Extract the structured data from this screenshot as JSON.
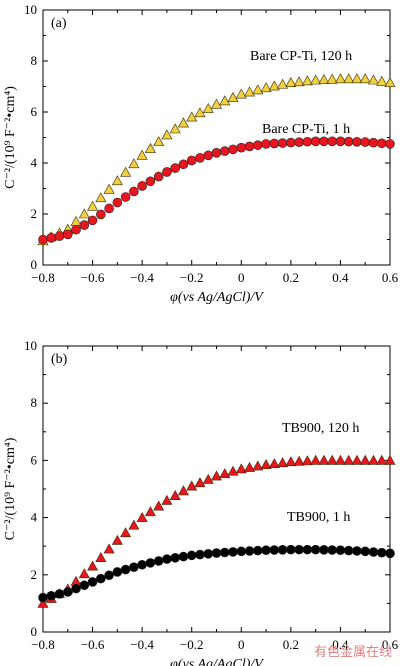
{
  "watermark": "有色金属在线",
  "chart_data": [
    {
      "type": "scatter",
      "panel_tag": "(a)",
      "xlabel": "φ(vs Ag/AgCl)/V",
      "ylabel": "C⁻²/(10⁹ F⁻²•cm⁴)",
      "xlim": [
        -0.8,
        0.6
      ],
      "ylim": [
        0,
        10
      ],
      "xticks": [
        -0.8,
        -0.6,
        -0.4,
        -0.2,
        0,
        0.2,
        0.4,
        0.6
      ],
      "xtick_labels": [
        "−0.8",
        "−0.6",
        "−0.4",
        "−0.2",
        "0",
        "0.2",
        "0.4",
        "0.6"
      ],
      "yticks": [
        0,
        2,
        4,
        6,
        8,
        10
      ],
      "ytick_labels": [
        "0",
        "2",
        "4",
        "6",
        "8",
        "10"
      ],
      "series": [
        {
          "name": "Bare CP-Ti, 120 h",
          "marker": "triangle",
          "color": "#f0d040",
          "x": [
            -0.8,
            -0.7,
            -0.6,
            -0.5,
            -0.4,
            -0.3,
            -0.2,
            -0.1,
            0.0,
            0.1,
            0.2,
            0.3,
            0.4,
            0.5,
            0.6
          ],
          "y": [
            0.95,
            1.4,
            2.3,
            3.3,
            4.3,
            5.1,
            5.8,
            6.3,
            6.7,
            6.95,
            7.15,
            7.25,
            7.3,
            7.3,
            7.15
          ]
        },
        {
          "name": "Bare CP-Ti, 1 h",
          "marker": "circle",
          "color": "#e8161f",
          "x": [
            -0.8,
            -0.7,
            -0.6,
            -0.5,
            -0.4,
            -0.3,
            -0.2,
            -0.1,
            0.0,
            0.1,
            0.2,
            0.3,
            0.4,
            0.5,
            0.6
          ],
          "y": [
            1.0,
            1.2,
            1.75,
            2.45,
            3.1,
            3.65,
            4.1,
            4.4,
            4.6,
            4.75,
            4.8,
            4.85,
            4.85,
            4.82,
            4.75
          ]
        }
      ]
    },
    {
      "type": "scatter",
      "panel_tag": "(b)",
      "xlabel": "φ(vs Ag/AgCl)/V",
      "ylabel": "C⁻²/(10⁹ F⁻²•cm⁴)",
      "xlim": [
        -0.8,
        0.6
      ],
      "ylim": [
        0,
        10
      ],
      "xticks": [
        -0.8,
        -0.6,
        -0.4,
        -0.2,
        0,
        0.2,
        0.4,
        0.6
      ],
      "xtick_labels": [
        "−0.8",
        "−0.6",
        "−0.4",
        "−0.2",
        "0",
        "0.2",
        "0.4",
        "0.6"
      ],
      "yticks": [
        0,
        2,
        4,
        6,
        8,
        10
      ],
      "ytick_labels": [
        "0",
        "2",
        "4",
        "6",
        "8",
        "10"
      ],
      "series": [
        {
          "name": "TB900, 120 h",
          "marker": "triangle",
          "color": "#e8161f",
          "x": [
            -0.8,
            -0.7,
            -0.6,
            -0.5,
            -0.4,
            -0.3,
            -0.2,
            -0.1,
            0.0,
            0.1,
            0.2,
            0.3,
            0.4,
            0.5,
            0.6
          ],
          "y": [
            1.0,
            1.5,
            2.3,
            3.2,
            4.0,
            4.6,
            5.1,
            5.45,
            5.7,
            5.85,
            5.95,
            6.0,
            6.0,
            6.0,
            6.0
          ]
        },
        {
          "name": "TB900, 1 h",
          "marker": "circle",
          "color": "#000000",
          "x": [
            -0.8,
            -0.7,
            -0.6,
            -0.5,
            -0.4,
            -0.3,
            -0.2,
            -0.1,
            0.0,
            0.1,
            0.2,
            0.3,
            0.4,
            0.5,
            0.6
          ],
          "y": [
            1.2,
            1.4,
            1.75,
            2.1,
            2.35,
            2.55,
            2.68,
            2.76,
            2.82,
            2.86,
            2.88,
            2.88,
            2.86,
            2.82,
            2.75
          ]
        }
      ]
    }
  ]
}
